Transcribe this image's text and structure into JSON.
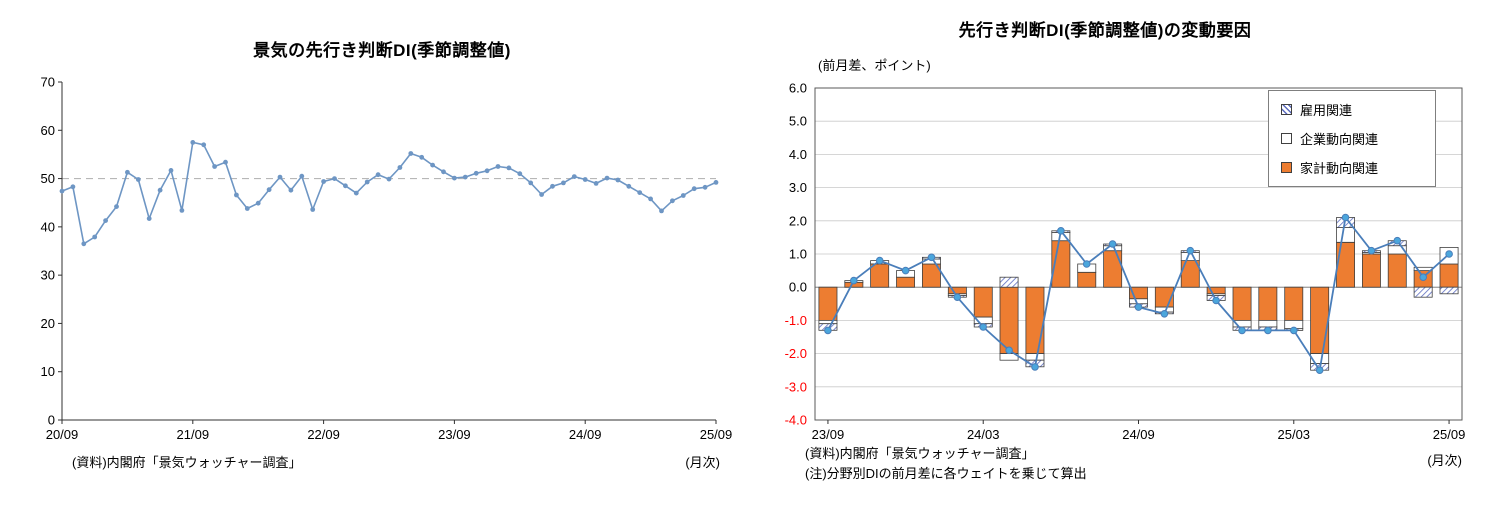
{
  "page": {
    "background": "#FFFFFF"
  },
  "chart_data": [
    {
      "type": "line",
      "title": "景気の先行き判断DI(季節調整値)",
      "ylim": [
        0,
        70
      ],
      "ytick_step": 10,
      "reference_line": 50,
      "reference_line_color": "#B7B7B7",
      "line_color": "#6E96C4",
      "start_month": "20/09",
      "end_month": "25/09",
      "x_ticks": [
        {
          "index": 0,
          "label": "20/09"
        },
        {
          "index": 12,
          "label": "21/09"
        },
        {
          "index": 24,
          "label": "22/09"
        },
        {
          "index": 36,
          "label": "23/09"
        },
        {
          "index": 48,
          "label": "24/09"
        },
        {
          "index": 60,
          "label": "25/09"
        }
      ],
      "values": [
        47.4,
        48.3,
        36.5,
        37.9,
        41.3,
        44.2,
        51.3,
        49.8,
        41.7,
        47.6,
        51.7,
        43.4,
        57.5,
        57.0,
        52.5,
        53.4,
        46.6,
        43.8,
        44.9,
        47.7,
        50.3,
        47.6,
        50.5,
        43.6,
        49.4,
        50.0,
        48.5,
        47.0,
        49.3,
        50.8,
        49.9,
        52.3,
        55.2,
        54.4,
        52.8,
        51.4,
        50.1,
        50.3,
        51.1,
        51.6,
        52.5,
        52.2,
        51.0,
        49.1,
        46.7,
        48.4,
        49.1,
        50.4,
        49.8,
        49.0,
        50.1,
        49.7,
        48.4,
        47.1,
        45.8,
        43.3,
        45.4,
        46.5,
        47.9,
        48.2,
        49.2
      ],
      "source_note": "(資料)内閣府「景気ウォッチャー調査」",
      "frequency_note": "(月次)"
    },
    {
      "type": "stacked-bar-with-line",
      "title": "先行き判断DI(季節調整値)の変動要因",
      "axis_unit_note": "(前月差、ポイント)",
      "ylim": [
        -4.0,
        6.0
      ],
      "ytick_step": 1.0,
      "negative_tick_color": "#FF0000",
      "months": [
        "23/09",
        "23/10",
        "23/11",
        "23/12",
        "24/01",
        "24/02",
        "24/03",
        "24/04",
        "24/05",
        "24/06",
        "24/07",
        "24/08",
        "24/09",
        "24/10",
        "24/11",
        "24/12",
        "25/01",
        "25/02",
        "25/03",
        "25/04",
        "25/05",
        "25/06",
        "25/07",
        "25/08",
        "25/09"
      ],
      "x_ticks": [
        {
          "index": 0,
          "label": "23/09"
        },
        {
          "index": 6,
          "label": "24/03"
        },
        {
          "index": 12,
          "label": "24/09"
        },
        {
          "index": 18,
          "label": "25/03"
        },
        {
          "index": 24,
          "label": "25/09"
        }
      ],
      "series": [
        {
          "name": "雇用関連",
          "style": "hatched",
          "hatch_color": "#5B6BBF",
          "values": [
            -0.2,
            0.0,
            0.0,
            0.0,
            0.05,
            -0.05,
            -0.1,
            0.3,
            -0.2,
            0.05,
            0.0,
            0.05,
            -0.1,
            -0.05,
            0.05,
            -0.15,
            -0.1,
            -0.1,
            -0.05,
            -0.2,
            0.3,
            0.05,
            0.15,
            -0.3,
            -0.2
          ]
        },
        {
          "name": "企業動向関連",
          "style": "white",
          "color": "#FFFFFF",
          "values": [
            -0.1,
            0.05,
            0.1,
            0.2,
            0.15,
            -0.05,
            -0.2,
            -0.2,
            -0.2,
            0.25,
            0.25,
            0.15,
            -0.15,
            -0.15,
            0.25,
            -0.05,
            -0.2,
            -0.2,
            -0.25,
            -0.3,
            0.45,
            0.05,
            0.25,
            0.1,
            0.5
          ]
        },
        {
          "name": "家計動向関連",
          "style": "solid",
          "color": "#ED7D31",
          "values": [
            -1.0,
            0.15,
            0.7,
            0.3,
            0.7,
            -0.2,
            -0.9,
            -2.0,
            -2.0,
            1.4,
            0.45,
            1.1,
            -0.35,
            -0.6,
            0.8,
            -0.2,
            -1.0,
            -1.0,
            -1.0,
            -2.0,
            1.35,
            1.0,
            1.0,
            0.5,
            0.7
          ]
        }
      ],
      "line": {
        "color": "#4A7EBA",
        "marker_fill": "#4BA6DC",
        "values": [
          -1.3,
          0.2,
          0.8,
          0.5,
          0.9,
          -0.3,
          -1.2,
          -1.9,
          -2.4,
          1.7,
          0.7,
          1.3,
          -0.6,
          -0.8,
          1.1,
          -0.4,
          -1.3,
          -1.3,
          -1.3,
          -2.5,
          2.1,
          1.1,
          1.4,
          0.3,
          1.0
        ]
      },
      "source_note": "(資料)内閣府「景気ウォッチャー調査」",
      "method_note": "(注)分野別DIの前月差に各ウェイトを乗じて算出",
      "frequency_note": "(月次)"
    }
  ]
}
